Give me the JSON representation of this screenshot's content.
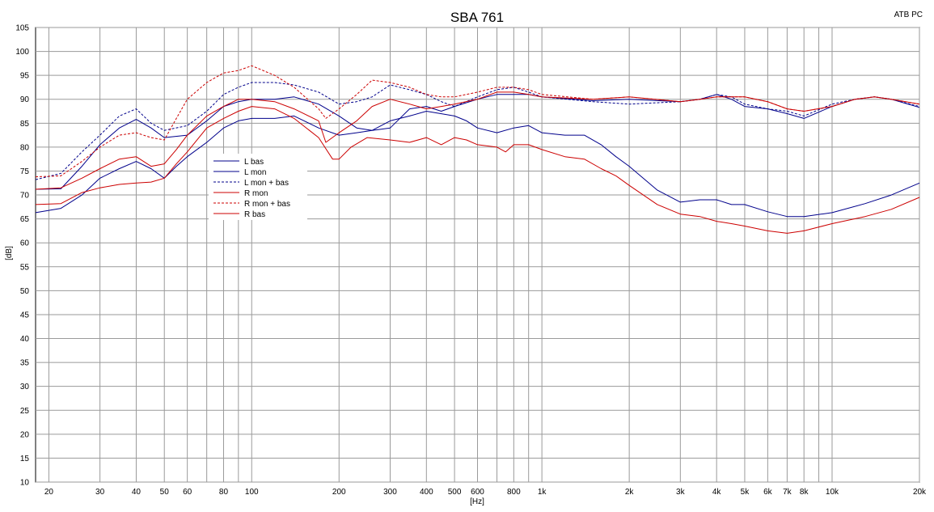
{
  "header": {
    "corner_label": "ATB PC"
  },
  "chart_data": {
    "type": "line",
    "title": "SBA 761",
    "xlabel": "[Hz]",
    "ylabel": "[dB]",
    "x_scale": "log",
    "xlim": [
      18,
      20000
    ],
    "ylim": [
      10,
      105
    ],
    "grid": true,
    "legend_position": "left, near top",
    "x_ticks": [
      {
        "v": 20,
        "label": "20"
      },
      {
        "v": 30,
        "label": "30"
      },
      {
        "v": 40,
        "label": "40"
      },
      {
        "v": 50,
        "label": "50"
      },
      {
        "v": 60,
        "label": "60"
      },
      {
        "v": 80,
        "label": "80"
      },
      {
        "v": 100,
        "label": "100"
      },
      {
        "v": 200,
        "label": "200"
      },
      {
        "v": 300,
        "label": "300"
      },
      {
        "v": 400,
        "label": "400"
      },
      {
        "v": 500,
        "label": "500"
      },
      {
        "v": 600,
        "label": "600"
      },
      {
        "v": 800,
        "label": "800"
      },
      {
        "v": 1000,
        "label": "1k"
      },
      {
        "v": 2000,
        "label": "2k"
      },
      {
        "v": 3000,
        "label": "3k"
      },
      {
        "v": 4000,
        "label": "4k"
      },
      {
        "v": 5000,
        "label": "5k"
      },
      {
        "v": 6000,
        "label": "6k"
      },
      {
        "v": 7000,
        "label": "7k"
      },
      {
        "v": 8000,
        "label": "8k"
      },
      {
        "v": 10000,
        "label": "10k"
      },
      {
        "v": 20000,
        "label": "20k"
      }
    ],
    "x_grid": [
      20,
      30,
      40,
      50,
      60,
      70,
      80,
      90,
      100,
      200,
      300,
      400,
      500,
      600,
      700,
      800,
      900,
      1000,
      2000,
      3000,
      4000,
      5000,
      6000,
      7000,
      8000,
      9000,
      10000,
      20000
    ],
    "y_ticks": [
      10,
      15,
      20,
      25,
      30,
      35,
      40,
      45,
      50,
      55,
      60,
      65,
      70,
      75,
      80,
      85,
      90,
      95,
      100,
      105
    ],
    "series": [
      {
        "name": "L bas",
        "color": "#00008b",
        "dash": "solid",
        "points": [
          [
            18,
            66.3
          ],
          [
            22,
            67.2
          ],
          [
            26,
            70
          ],
          [
            30,
            73.5
          ],
          [
            35,
            75.5
          ],
          [
            40,
            77
          ],
          [
            45,
            75.5
          ],
          [
            50,
            73.5
          ],
          [
            55,
            76
          ],
          [
            60,
            78
          ],
          [
            70,
            81
          ],
          [
            80,
            84
          ],
          [
            90,
            85.5
          ],
          [
            100,
            86
          ],
          [
            120,
            86
          ],
          [
            140,
            86.5
          ],
          [
            170,
            84
          ],
          [
            200,
            82.5
          ],
          [
            230,
            83
          ],
          [
            260,
            83.5
          ],
          [
            300,
            85.5
          ],
          [
            350,
            86.5
          ],
          [
            400,
            87.5
          ],
          [
            500,
            86.5
          ],
          [
            550,
            85.5
          ],
          [
            600,
            84
          ],
          [
            700,
            83
          ],
          [
            800,
            84
          ],
          [
            900,
            84.5
          ],
          [
            1000,
            83
          ],
          [
            1200,
            82.5
          ],
          [
            1400,
            82.5
          ],
          [
            1600,
            80.5
          ],
          [
            1800,
            78
          ],
          [
            2000,
            76
          ],
          [
            2500,
            71
          ],
          [
            3000,
            68.5
          ],
          [
            3500,
            69
          ],
          [
            4000,
            69
          ],
          [
            4500,
            68
          ],
          [
            5000,
            68
          ],
          [
            6000,
            66.5
          ],
          [
            7000,
            65.5
          ],
          [
            8000,
            65.5
          ],
          [
            10000,
            66.3
          ],
          [
            13000,
            68.2
          ],
          [
            16000,
            70
          ],
          [
            20000,
            72.5
          ]
        ]
      },
      {
        "name": "L mon",
        "color": "#00008b",
        "dash": "solid",
        "points": [
          [
            18,
            71.2
          ],
          [
            22,
            71.3
          ],
          [
            26,
            76
          ],
          [
            30,
            80.5
          ],
          [
            35,
            84
          ],
          [
            40,
            85.8
          ],
          [
            45,
            84
          ],
          [
            50,
            82
          ],
          [
            60,
            82.5
          ],
          [
            70,
            85.5
          ],
          [
            80,
            88.5
          ],
          [
            90,
            89.5
          ],
          [
            100,
            90
          ],
          [
            120,
            90
          ],
          [
            140,
            90.5
          ],
          [
            170,
            89
          ],
          [
            200,
            86.5
          ],
          [
            230,
            84
          ],
          [
            260,
            83.5
          ],
          [
            300,
            84
          ],
          [
            350,
            88
          ],
          [
            400,
            88.5
          ],
          [
            450,
            87.5
          ],
          [
            500,
            88.5
          ],
          [
            600,
            90
          ],
          [
            700,
            91
          ],
          [
            800,
            91
          ],
          [
            900,
            91
          ],
          [
            1000,
            90.5
          ],
          [
            1500,
            89.7
          ],
          [
            2000,
            90
          ],
          [
            3000,
            89.5
          ],
          [
            3500,
            90
          ],
          [
            4000,
            91
          ],
          [
            4500,
            90
          ],
          [
            5000,
            88.5
          ],
          [
            6000,
            88
          ],
          [
            7000,
            87
          ],
          [
            8000,
            86
          ],
          [
            10000,
            88.5
          ],
          [
            12000,
            90
          ],
          [
            14000,
            90.5
          ],
          [
            16000,
            90
          ],
          [
            20000,
            88.3
          ]
        ]
      },
      {
        "name": "L mon + bas",
        "color": "#00008b",
        "dash": "dashed",
        "points": [
          [
            18,
            73.2
          ],
          [
            22,
            74.5
          ],
          [
            26,
            79
          ],
          [
            30,
            82.5
          ],
          [
            35,
            86.5
          ],
          [
            40,
            88
          ],
          [
            45,
            85
          ],
          [
            50,
            83.5
          ],
          [
            60,
            84.5
          ],
          [
            70,
            87.5
          ],
          [
            80,
            91
          ],
          [
            90,
            92.5
          ],
          [
            100,
            93.5
          ],
          [
            120,
            93.5
          ],
          [
            140,
            93
          ],
          [
            170,
            91.5
          ],
          [
            200,
            89
          ],
          [
            230,
            89.5
          ],
          [
            260,
            90.5
          ],
          [
            300,
            93
          ],
          [
            350,
            92
          ],
          [
            400,
            91
          ],
          [
            450,
            89.5
          ],
          [
            500,
            88.5
          ],
          [
            600,
            90.5
          ],
          [
            700,
            92
          ],
          [
            800,
            92.5
          ],
          [
            900,
            91.5
          ],
          [
            1000,
            90.5
          ],
          [
            1500,
            89.5
          ],
          [
            2000,
            89
          ],
          [
            3000,
            89.5
          ],
          [
            3500,
            90
          ],
          [
            4000,
            91
          ],
          [
            4500,
            90.5
          ],
          [
            5000,
            89
          ],
          [
            6000,
            88
          ],
          [
            7000,
            87.5
          ],
          [
            8000,
            86.5
          ],
          [
            10000,
            89
          ],
          [
            12000,
            90
          ],
          [
            14000,
            90.5
          ],
          [
            16000,
            90
          ],
          [
            20000,
            88.5
          ]
        ]
      },
      {
        "name": "R mon",
        "color": "#cc0000",
        "dash": "solid",
        "points": [
          [
            18,
            71.2
          ],
          [
            22,
            71.5
          ],
          [
            26,
            73.5
          ],
          [
            30,
            75.5
          ],
          [
            35,
            77.5
          ],
          [
            40,
            78
          ],
          [
            45,
            76
          ],
          [
            50,
            76.5
          ],
          [
            55,
            79.5
          ],
          [
            60,
            82.5
          ],
          [
            70,
            86.5
          ],
          [
            80,
            88.5
          ],
          [
            90,
            90
          ],
          [
            100,
            90
          ],
          [
            120,
            89.5
          ],
          [
            140,
            88
          ],
          [
            170,
            85.5
          ],
          [
            180,
            81
          ],
          [
            200,
            83
          ],
          [
            230,
            85.5
          ],
          [
            260,
            88.5
          ],
          [
            300,
            90
          ],
          [
            350,
            89
          ],
          [
            400,
            88
          ],
          [
            450,
            88.5
          ],
          [
            500,
            89
          ],
          [
            600,
            90
          ],
          [
            700,
            91.5
          ],
          [
            800,
            91.5
          ],
          [
            900,
            91
          ],
          [
            1000,
            90.5
          ],
          [
            1500,
            90
          ],
          [
            2000,
            90.5
          ],
          [
            3000,
            89.5
          ],
          [
            3500,
            90
          ],
          [
            4000,
            90.5
          ],
          [
            4500,
            90.5
          ],
          [
            5000,
            90.5
          ],
          [
            6000,
            89.5
          ],
          [
            7000,
            88
          ],
          [
            8000,
            87.5
          ],
          [
            10000,
            88.5
          ],
          [
            12000,
            90
          ],
          [
            14000,
            90.5
          ],
          [
            16000,
            90
          ],
          [
            20000,
            89
          ]
        ]
      },
      {
        "name": "R mon + bas",
        "color": "#cc0000",
        "dash": "dashed",
        "points": [
          [
            18,
            73.8
          ],
          [
            22,
            74
          ],
          [
            26,
            77
          ],
          [
            30,
            80
          ],
          [
            35,
            82.5
          ],
          [
            40,
            83
          ],
          [
            45,
            82
          ],
          [
            50,
            81.5
          ],
          [
            55,
            86
          ],
          [
            60,
            90
          ],
          [
            70,
            93.5
          ],
          [
            80,
            95.5
          ],
          [
            90,
            96
          ],
          [
            100,
            97
          ],
          [
            120,
            95
          ],
          [
            140,
            92.5
          ],
          [
            170,
            88
          ],
          [
            180,
            86
          ],
          [
            200,
            88
          ],
          [
            230,
            91
          ],
          [
            260,
            94
          ],
          [
            300,
            93.5
          ],
          [
            350,
            92.5
          ],
          [
            400,
            91
          ],
          [
            450,
            90.5
          ],
          [
            500,
            90.5
          ],
          [
            600,
            91.5
          ],
          [
            700,
            92.5
          ],
          [
            800,
            92.5
          ],
          [
            900,
            92
          ],
          [
            1000,
            91
          ],
          [
            1500,
            90
          ],
          [
            2000,
            90.5
          ],
          [
            3000,
            89.5
          ],
          [
            3500,
            90
          ],
          [
            4000,
            90.5
          ],
          [
            4500,
            90.5
          ],
          [
            5000,
            90.5
          ],
          [
            6000,
            89.5
          ],
          [
            7000,
            88
          ],
          [
            8000,
            87.5
          ],
          [
            10000,
            88.5
          ],
          [
            12000,
            90
          ],
          [
            14000,
            90.5
          ],
          [
            16000,
            90
          ],
          [
            20000,
            89
          ]
        ]
      },
      {
        "name": "R bas",
        "color": "#cc0000",
        "dash": "solid",
        "points": [
          [
            18,
            68
          ],
          [
            22,
            68.2
          ],
          [
            26,
            70.5
          ],
          [
            30,
            71.5
          ],
          [
            35,
            72.2
          ],
          [
            40,
            72.5
          ],
          [
            45,
            72.7
          ],
          [
            50,
            73.5
          ],
          [
            55,
            76.5
          ],
          [
            60,
            79
          ],
          [
            70,
            84
          ],
          [
            80,
            86
          ],
          [
            90,
            87.5
          ],
          [
            100,
            88.5
          ],
          [
            120,
            88
          ],
          [
            140,
            86
          ],
          [
            170,
            82
          ],
          [
            190,
            77.5
          ],
          [
            200,
            77.5
          ],
          [
            220,
            80
          ],
          [
            250,
            82
          ],
          [
            300,
            81.5
          ],
          [
            350,
            81
          ],
          [
            400,
            82
          ],
          [
            450,
            80.5
          ],
          [
            500,
            82
          ],
          [
            550,
            81.5
          ],
          [
            600,
            80.5
          ],
          [
            700,
            80
          ],
          [
            750,
            79
          ],
          [
            800,
            80.5
          ],
          [
            900,
            80.5
          ],
          [
            1000,
            79.5
          ],
          [
            1200,
            78
          ],
          [
            1400,
            77.5
          ],
          [
            1600,
            75.5
          ],
          [
            1800,
            74
          ],
          [
            2000,
            72
          ],
          [
            2500,
            68
          ],
          [
            3000,
            66
          ],
          [
            3500,
            65.5
          ],
          [
            4000,
            64.5
          ],
          [
            4500,
            64
          ],
          [
            5000,
            63.5
          ],
          [
            6000,
            62.5
          ],
          [
            7000,
            62
          ],
          [
            8000,
            62.5
          ],
          [
            10000,
            64
          ],
          [
            13000,
            65.5
          ],
          [
            16000,
            67
          ],
          [
            20000,
            69.5
          ]
        ]
      }
    ]
  }
}
